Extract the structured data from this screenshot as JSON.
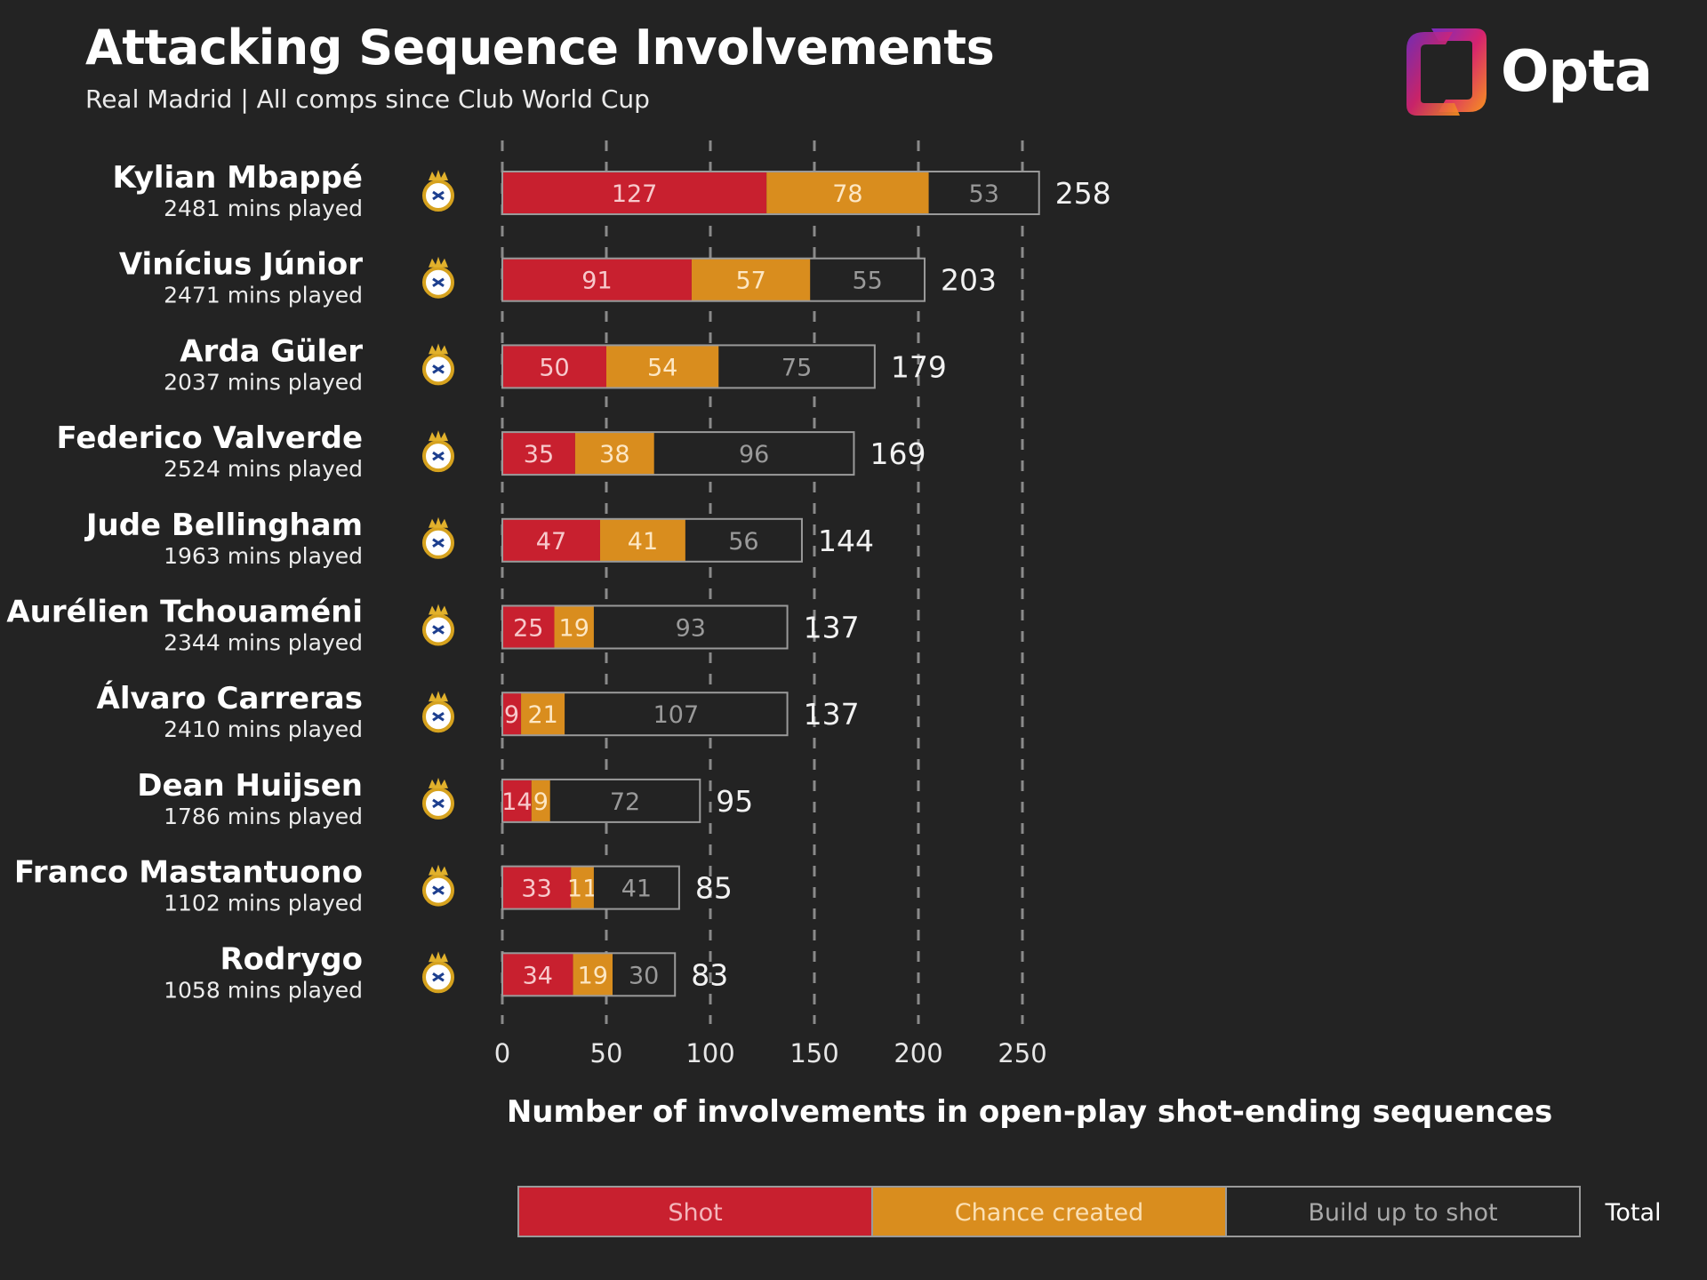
{
  "header": {
    "title": "Attacking Sequence Involvements",
    "subtitle": "Real Madrid | All comps since Club World Cup",
    "brand": "Opta"
  },
  "colors": {
    "background": "#232323",
    "shot": "#c8202f",
    "chance_created": "#d98d1e",
    "build_up": "#232323",
    "grid": "#8a8a8a"
  },
  "chart_data": {
    "type": "bar",
    "orientation": "horizontal",
    "stacked": true,
    "xlabel": "Number of involvements in open-play shot-ending sequences",
    "xlim": [
      0,
      258
    ],
    "xticks": [
      0,
      50,
      100,
      150,
      200,
      250
    ],
    "grid": "vertical dashed",
    "legend_position": "bottom",
    "series": [
      {
        "name": "Shot",
        "values": [
          127,
          91,
          50,
          35,
          47,
          25,
          9,
          14,
          33,
          34
        ]
      },
      {
        "name": "Chance created",
        "values": [
          78,
          57,
          54,
          38,
          41,
          19,
          21,
          9,
          11,
          19
        ]
      },
      {
        "name": "Build up to shot",
        "values": [
          53,
          55,
          75,
          96,
          56,
          93,
          107,
          72,
          41,
          30
        ]
      }
    ],
    "totals_label": "Total",
    "players": [
      {
        "name": "Kylian Mbappé",
        "mins": "2481 mins played",
        "total": 258
      },
      {
        "name": "Vinícius Júnior",
        "mins": "2471 mins played",
        "total": 203
      },
      {
        "name": "Arda Güler",
        "mins": "2037 mins played",
        "total": 179
      },
      {
        "name": "Federico Valverde",
        "mins": "2524 mins played",
        "total": 169
      },
      {
        "name": "Jude Bellingham",
        "mins": "1963 mins played",
        "total": 144
      },
      {
        "name": "Aurélien Tchouaméni",
        "mins": "2344 mins played",
        "total": 137
      },
      {
        "name": "Álvaro Carreras",
        "mins": "2410 mins played",
        "total": 137
      },
      {
        "name": "Dean Huijsen",
        "mins": "1786 mins played",
        "total": 95
      },
      {
        "name": "Franco Mastantuono",
        "mins": "1102 mins played",
        "total": 85
      },
      {
        "name": "Rodrygo",
        "mins": "1058 mins played",
        "total": 83
      }
    ]
  }
}
